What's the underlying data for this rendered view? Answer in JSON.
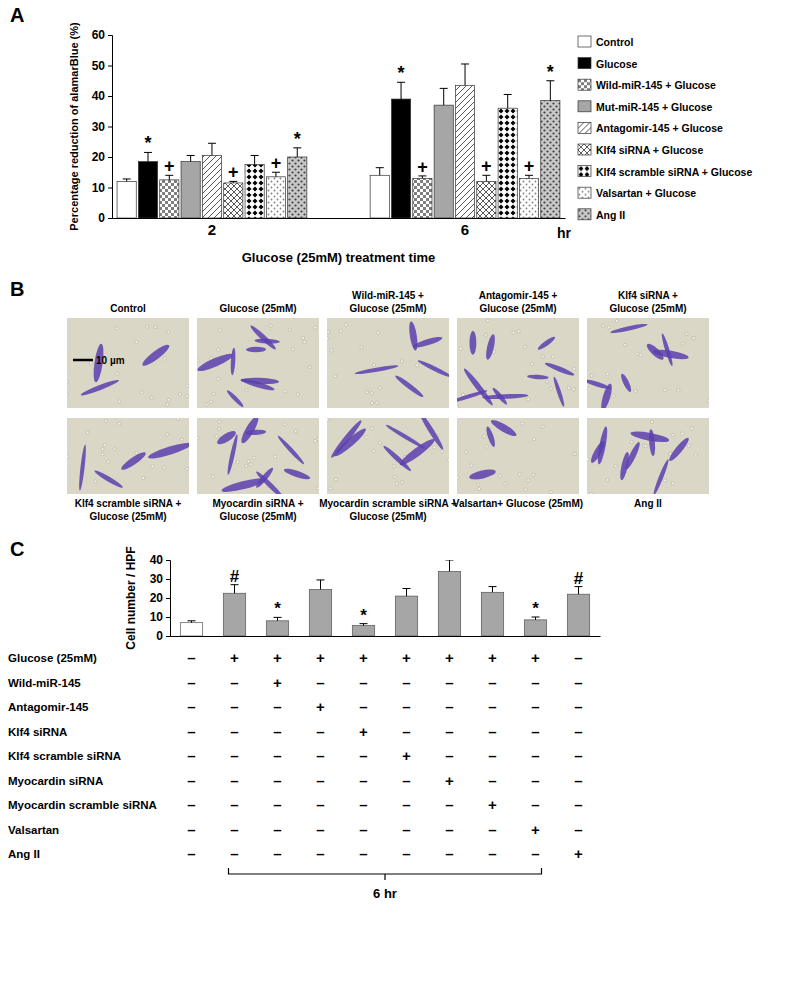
{
  "chart_data": [
    {
      "type": "bar",
      "panel_label": "A",
      "y_label": "Percentage reduction of alamarBlue (%)",
      "x_label": "Glucose (25mM) treatment time",
      "x_unit": "hr",
      "categories": [
        "2",
        "6"
      ],
      "ylim": [
        0,
        60
      ],
      "yticks": [
        0,
        10,
        20,
        30,
        40,
        50,
        60
      ],
      "legend": "right",
      "series": [
        {
          "name": "Control",
          "color": "#ffffff",
          "values": [
            12,
            14
          ],
          "errors": [
            0.8,
            2.5
          ],
          "annotations": [
            null,
            null
          ]
        },
        {
          "name": "Glucose",
          "color": "#000000",
          "values": [
            18.5,
            39
          ],
          "errors": [
            3,
            5.5
          ],
          "annotations": [
            "*",
            "*"
          ]
        },
        {
          "name": "Wild-miR-145 + Glucose",
          "color": "#7f7f7f",
          "values": [
            12.5,
            13
          ],
          "errors": [
            1.5,
            0.8
          ],
          "annotations": [
            "+",
            "+"
          ]
        },
        {
          "name": "Mut-miR-145 + Glucose",
          "color": "#a6a6a6",
          "values": [
            18.5,
            37
          ],
          "errors": [
            2,
            5.5
          ],
          "annotations": [
            null,
            null
          ]
        },
        {
          "name": "Antagomir-145 + Glucose",
          "color": "#595959",
          "values": [
            20.5,
            43.5
          ],
          "errors": [
            4,
            7
          ],
          "annotations": [
            null,
            null
          ]
        },
        {
          "name": "Klf4 siRNA + Glucose",
          "color": "#595959",
          "values": [
            11.5,
            12
          ],
          "errors": [
            0.5,
            2
          ],
          "annotations": [
            "+",
            "+"
          ]
        },
        {
          "name": "Klf4 scramble siRNA + Glucose",
          "color": "#000000",
          "values": [
            17.5,
            36
          ],
          "errors": [
            3,
            4.5
          ],
          "annotations": [
            null,
            null
          ]
        },
        {
          "name": "Valsartan + Glucose",
          "color": "#7f7f7f",
          "values": [
            13.5,
            13
          ],
          "errors": [
            1.5,
            1
          ],
          "annotations": [
            "+",
            "+"
          ]
        },
        {
          "name": "Ang II",
          "color": "#404040",
          "values": [
            20,
            38.5
          ],
          "errors": [
            3,
            6.5
          ],
          "annotations": [
            "*",
            "*"
          ]
        }
      ]
    },
    {
      "type": "bar",
      "panel_label": "C",
      "y_label": "Cell number / HPF",
      "categories": [
        null,
        null,
        null,
        null,
        null,
        null,
        null,
        null,
        null,
        null
      ],
      "values": [
        7,
        22.5,
        8,
        24.5,
        5.5,
        21,
        34,
        23,
        8.5,
        22
      ],
      "errors": [
        1,
        4.5,
        1.8,
        5,
        1,
        4,
        6,
        3,
        1.5,
        4
      ],
      "annotations": [
        null,
        "#",
        "*",
        null,
        "*",
        null,
        null,
        null,
        "*",
        "#"
      ],
      "colors": [
        "#ffffff",
        "#a6a6a6",
        "#a6a6a6",
        "#a6a6a6",
        "#a6a6a6",
        "#a6a6a6",
        "#a6a6a6",
        "#a6a6a6",
        "#a6a6a6",
        "#a6a6a6"
      ],
      "ylim": [
        0,
        40
      ],
      "yticks": [
        0,
        10,
        20,
        30,
        40
      ],
      "tick_labels": "y",
      "treatment_table": {
        "rows": [
          {
            "label": "Glucose (25mM)",
            "cells": [
              "–",
              "+",
              "+",
              "+",
              "+",
              "+",
              "+",
              "+",
              "+",
              "–"
            ]
          },
          {
            "label": "Wild-miR-145",
            "cells": [
              "–",
              "–",
              "+",
              "–",
              "–",
              "–",
              "–",
              "–",
              "–",
              "–"
            ]
          },
          {
            "label": "Antagomir-145",
            "cells": [
              "–",
              "–",
              "–",
              "+",
              "–",
              "–",
              "–",
              "–",
              "–",
              "–"
            ]
          },
          {
            "label": "Klf4 siRNA",
            "cells": [
              "–",
              "–",
              "–",
              "–",
              "+",
              "–",
              "–",
              "–",
              "–",
              "–"
            ]
          },
          {
            "label": "Klf4 scramble siRNA",
            "cells": [
              "–",
              "–",
              "–",
              "–",
              "–",
              "+",
              "–",
              "–",
              "–",
              "–"
            ]
          },
          {
            "label": "Myocardin siRNA",
            "cells": [
              "–",
              "–",
              "–",
              "–",
              "–",
              "–",
              "+",
              "–",
              "–",
              "–"
            ]
          },
          {
            "label": "Myocardin scramble siRNA",
            "cells": [
              "–",
              "–",
              "–",
              "–",
              "–",
              "–",
              "–",
              "+",
              "–",
              "–"
            ]
          },
          {
            "label": "Valsartan",
            "cells": [
              "–",
              "–",
              "–",
              "–",
              "–",
              "–",
              "–",
              "–",
              "+",
              "–"
            ]
          },
          {
            "label": "Ang II",
            "cells": [
              "–",
              "–",
              "–",
              "–",
              "–",
              "–",
              "–",
              "–",
              "–",
              "+"
            ]
          }
        ]
      },
      "bracket_label": "6 hr"
    }
  ],
  "panel_b": {
    "panel_label": "B",
    "scale_bar": "10 µm",
    "images": [
      {
        "caption": [
          "Control"
        ]
      },
      {
        "caption": [
          "Glucose (25mM)"
        ]
      },
      {
        "caption": [
          "Wild-miR-145 +",
          "Glucose (25mM)"
        ]
      },
      {
        "caption": [
          "Antagomir-145 +",
          "Glucose (25mM)"
        ]
      },
      {
        "caption": [
          "Klf4 siRNA +",
          "Glucose (25mM)"
        ]
      },
      {
        "caption": [
          "Klf4 scramble siRNA +",
          "Glucose (25mM)"
        ]
      },
      {
        "caption": [
          "Myocardin siRNA +",
          "Glucose (25mM)"
        ]
      },
      {
        "caption": [
          "Myocardin scramble siRNA +",
          "Glucose (25mM)"
        ]
      },
      {
        "caption": [
          "Valsartan+ Glucose (25mM)"
        ]
      },
      {
        "caption": [
          "Ang II"
        ]
      }
    ]
  }
}
